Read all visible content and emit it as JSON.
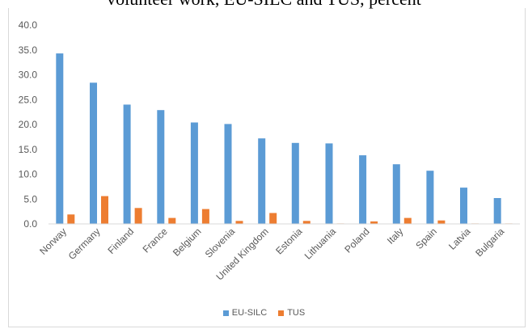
{
  "chart_data": {
    "type": "bar",
    "title": "volunteer work, EU-SILC and TUS, percent",
    "categories": [
      "Norway",
      "Germany",
      "Finland",
      "France",
      "Belgium",
      "Slovenia",
      "United Kingdom",
      "Estonia",
      "Lithuania",
      "Poland",
      "Italy",
      "Spain",
      "Latvia",
      "Bulgaria"
    ],
    "series": [
      {
        "name": "EU-SILC",
        "color": "#5b9bd5",
        "values": [
          34.3,
          28.4,
          24.0,
          22.9,
          20.4,
          20.1,
          17.2,
          16.3,
          16.2,
          13.8,
          12.0,
          10.7,
          7.3,
          5.2
        ]
      },
      {
        "name": "TUS",
        "color": "#ed7d31",
        "values": [
          1.9,
          5.6,
          3.2,
          1.2,
          3.0,
          0.6,
          2.2,
          0.6,
          0.1,
          0.5,
          1.2,
          0.7,
          0.1,
          0.1
        ]
      }
    ],
    "yticks": [
      "0.0",
      "5.0",
      "10.0",
      "15.0",
      "20.0",
      "25.0",
      "30.0",
      "35.0",
      "40.0"
    ],
    "ylim": [
      0,
      40
    ],
    "grid": false,
    "legend_position": "bottom"
  }
}
